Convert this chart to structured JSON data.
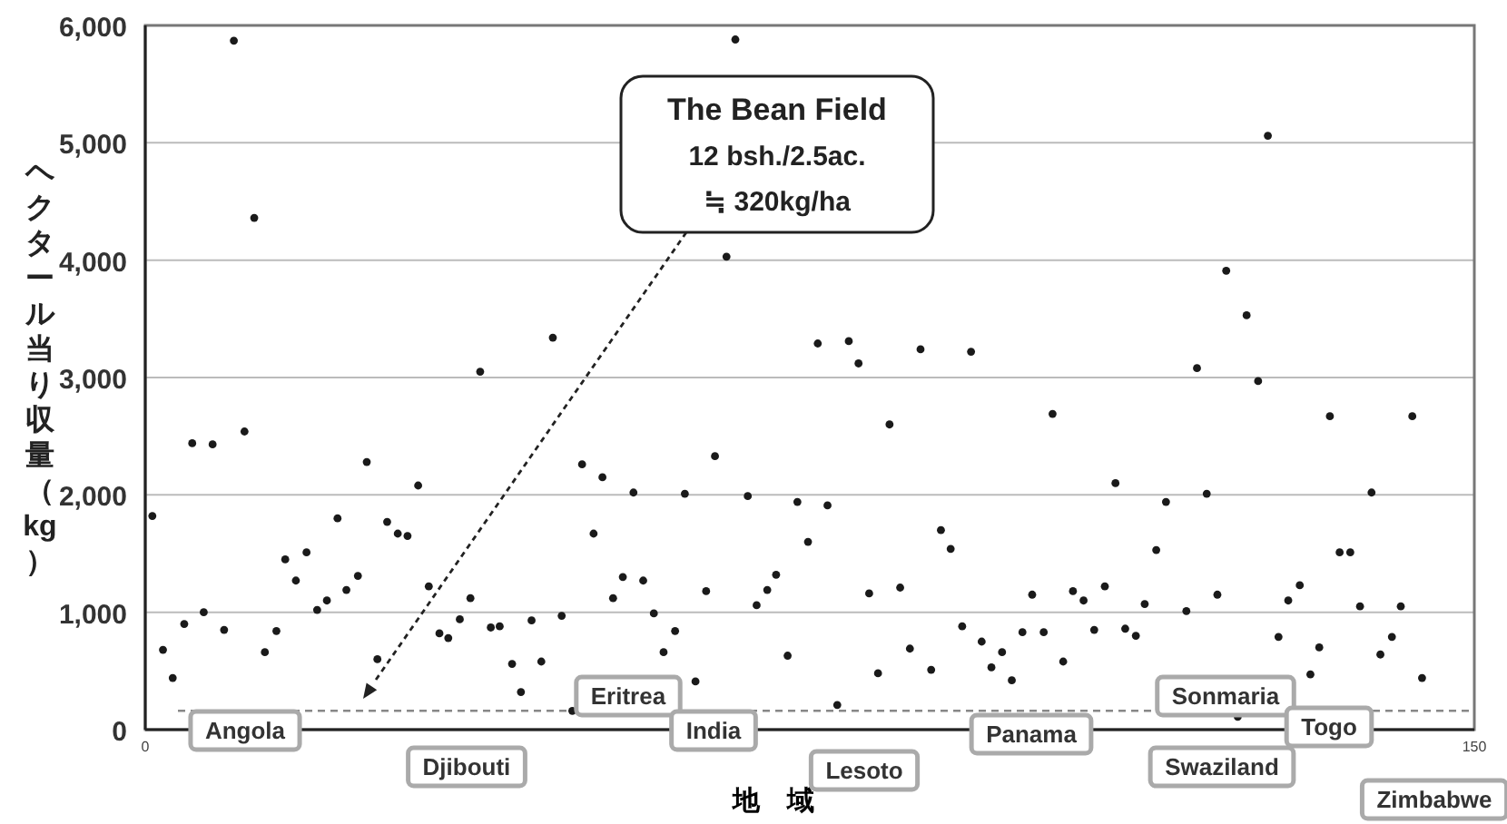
{
  "chart_data": {
    "type": "scatter",
    "xlabel": "地　域",
    "ylabel": "ヘクタール当り収量（kg）",
    "color": "#1a1a1a",
    "marker": "circle",
    "grid": "y",
    "xlim": [
      0,
      150
    ],
    "ylim": [
      0,
      6000
    ],
    "xticks": [
      0,
      150
    ],
    "yticks": [
      0,
      {
        "value": 1000,
        "label": "1,000"
      },
      {
        "value": 2000,
        "label": "2,000"
      },
      {
        "value": 3000,
        "label": "3,000"
      },
      {
        "value": 4000,
        "label": "4,000"
      },
      {
        "value": 5000,
        "label": "5,000"
      },
      {
        "value": 6000,
        "label": "6,000"
      }
    ],
    "ref_lines": [
      {
        "axis": "y",
        "value": 160,
        "color": "#888888",
        "line_style": "dashed"
      }
    ],
    "annotations": [
      "The Bean Field\n12 bsh./2.5ac.\n≒ 320kg/ha",
      "Angola",
      "Djibouti",
      "Eritrea",
      "India",
      "Lesoto",
      "Panama",
      "Sonmaria",
      "Swaziland",
      "Togo",
      "Zimbabwe"
    ],
    "x": [
      0.8,
      2.0,
      3.1,
      4.4,
      5.3,
      6.6,
      7.6,
      8.9,
      10.0,
      11.2,
      12.3,
      13.5,
      14.8,
      15.8,
      17.0,
      18.2,
      19.4,
      20.5,
      21.7,
      22.7,
      24.0,
      25.0,
      26.2,
      27.3,
      28.5,
      29.6,
      30.8,
      32.0,
      33.2,
      34.2,
      35.5,
      36.7,
      37.8,
      39.0,
      40.0,
      41.4,
      42.4,
      43.6,
      44.7,
      46.0,
      47.0,
      48.2,
      49.3,
      50.6,
      51.6,
      52.8,
      53.9,
      55.1,
      56.2,
      57.4,
      58.5,
      59.8,
      60.9,
      62.1,
      63.3,
      64.3,
      65.6,
      66.6,
      68.0,
      69.0,
      70.2,
      71.2,
      72.5,
      73.6,
      74.8,
      75.9,
      77.0,
      78.1,
      79.4,
      80.5,
      81.7,
      82.7,
      84.0,
      85.2,
      86.3,
      87.5,
      88.7,
      89.8,
      90.9,
      92.2,
      93.2,
      94.4,
      95.5,
      96.7,
      97.8,
      99.0,
      100.1,
      101.4,
      102.4,
      103.6,
      104.7,
      105.9,
      107.1,
      108.3,
      109.5,
      110.6,
      111.8,
      112.8,
      114.1,
      115.2,
      117.5,
      118.7,
      119.8,
      121.0,
      122.0,
      123.3,
      124.3,
      125.6,
      126.7,
      127.9,
      129.0,
      130.3,
      131.5,
      132.5,
      133.7,
      134.8,
      136.0,
      137.1,
      138.4,
      139.4,
      140.7,
      141.7,
      143.0,
      144.1
    ],
    "values": [
      1820,
      680,
      440,
      900,
      2440,
      1000,
      2430,
      850,
      5870,
      2540,
      4360,
      660,
      840,
      1450,
      1270,
      1510,
      1020,
      1100,
      1800,
      1190,
      1310,
      2280,
      600,
      1770,
      1670,
      1650,
      2080,
      1220,
      820,
      780,
      940,
      1120,
      3050,
      870,
      880,
      560,
      320,
      930,
      580,
      3340,
      970,
      160,
      2260,
      1670,
      2150,
      1120,
      1300,
      2020,
      1270,
      990,
      660,
      840,
      2010,
      410,
      1180,
      2330,
      4030,
      5880,
      1990,
      1060,
      1190,
      1320,
      630,
      1940,
      1600,
      3290,
      1910,
      210,
      3310,
      3120,
      1160,
      480,
      2600,
      1210,
      690,
      3240,
      510,
      1700,
      1540,
      880,
      3220,
      750,
      530,
      660,
      420,
      830,
      1150,
      830,
      2690,
      580,
      1180,
      1100,
      850,
      1220,
      2100,
      860,
      800,
      1070,
      1530,
      1940,
      1010,
      3080,
      2010,
      1150,
      3910,
      110,
      3530,
      2970,
      5060,
      790,
      1100,
      1230,
      470,
      700,
      2670,
      1510,
      1510,
      1050,
      2020,
      640,
      790,
      1050,
      2670,
      440
    ]
  }
}
